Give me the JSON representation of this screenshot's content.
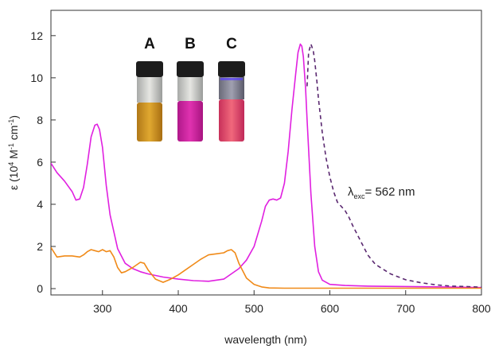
{
  "chart_data": {
    "type": "line",
    "xlabel": "wavelength (nm)",
    "ylabel": {
      "prefix": "ε (10",
      "exp1": "4",
      "mid": " M",
      "exp2": "-1",
      "mid2": " cm",
      "exp3": "-1",
      "suffix": ")"
    },
    "xlim": [
      232,
      800
    ],
    "ylim": [
      -0.3,
      13.2
    ],
    "xticks": [
      300,
      400,
      500,
      600,
      700,
      800
    ],
    "yticks": [
      0,
      2,
      4,
      6,
      8,
      10,
      12
    ],
    "grid": false,
    "annotation": {
      "symbol": "λ",
      "subscript": "exc",
      "text": "= 562 nm"
    },
    "vial_labels": [
      "A",
      "B",
      "C"
    ],
    "colors": {
      "magenta": "#e020e0",
      "orange": "#f08a18",
      "purple_dashed": "#5a2870"
    },
    "series": [
      {
        "color": "#e020e0",
        "style": "solid",
        "x": [
          232,
          240,
          250,
          260,
          265,
          270,
          275,
          280,
          285,
          290,
          293,
          296,
          300,
          305,
          310,
          320,
          330,
          340,
          350,
          360,
          380,
          400,
          420,
          440,
          460,
          480,
          490,
          500,
          510,
          515,
          520,
          525,
          530,
          535,
          540,
          545,
          550,
          555,
          558,
          561,
          563,
          565,
          568,
          570,
          575,
          580,
          585,
          590,
          600,
          620,
          650,
          700,
          750,
          800
        ],
        "y": [
          5.95,
          5.5,
          5.1,
          4.6,
          4.2,
          4.25,
          4.8,
          5.9,
          7.2,
          7.75,
          7.8,
          7.55,
          6.7,
          4.9,
          3.5,
          1.9,
          1.2,
          0.95,
          0.8,
          0.7,
          0.55,
          0.45,
          0.38,
          0.35,
          0.45,
          0.95,
          1.35,
          2.0,
          3.2,
          3.9,
          4.2,
          4.25,
          4.2,
          4.3,
          5.0,
          6.5,
          8.5,
          10.2,
          11.2,
          11.6,
          11.5,
          11.0,
          9.5,
          8.0,
          4.5,
          2.0,
          0.8,
          0.4,
          0.2,
          0.15,
          0.12,
          0.1,
          0.08,
          0.05
        ]
      },
      {
        "color": "#f08a18",
        "style": "solid",
        "x": [
          232,
          240,
          250,
          260,
          270,
          275,
          280,
          285,
          290,
          295,
          300,
          305,
          310,
          315,
          320,
          325,
          330,
          340,
          350,
          355,
          360,
          370,
          380,
          390,
          400,
          410,
          420,
          430,
          440,
          450,
          460,
          465,
          470,
          475,
          480,
          490,
          500,
          510,
          520,
          540,
          560,
          600,
          650,
          700,
          800
        ],
        "y": [
          1.95,
          1.5,
          1.55,
          1.55,
          1.5,
          1.6,
          1.75,
          1.85,
          1.8,
          1.75,
          1.85,
          1.75,
          1.8,
          1.5,
          1.0,
          0.75,
          0.8,
          1.0,
          1.25,
          1.2,
          0.9,
          0.45,
          0.3,
          0.45,
          0.65,
          0.9,
          1.15,
          1.4,
          1.6,
          1.65,
          1.7,
          1.8,
          1.85,
          1.7,
          1.2,
          0.5,
          0.2,
          0.08,
          0.03,
          0.02,
          0.02,
          0.02,
          0.02,
          0.02,
          0.02
        ]
      },
      {
        "color": "#5a2870",
        "style": "dashed",
        "x": [
          570,
          572,
          575,
          578,
          580,
          583,
          585,
          590,
          595,
          600,
          605,
          610,
          615,
          620,
          625,
          630,
          640,
          650,
          660,
          680,
          700,
          720,
          740,
          760,
          780,
          800
        ],
        "y": [
          9.6,
          11.2,
          11.6,
          11.3,
          10.8,
          9.8,
          9.0,
          7.4,
          6.2,
          5.3,
          4.6,
          4.1,
          3.9,
          3.7,
          3.4,
          3.0,
          2.3,
          1.6,
          1.15,
          0.7,
          0.42,
          0.28,
          0.18,
          0.12,
          0.1,
          0.07
        ]
      }
    ]
  }
}
